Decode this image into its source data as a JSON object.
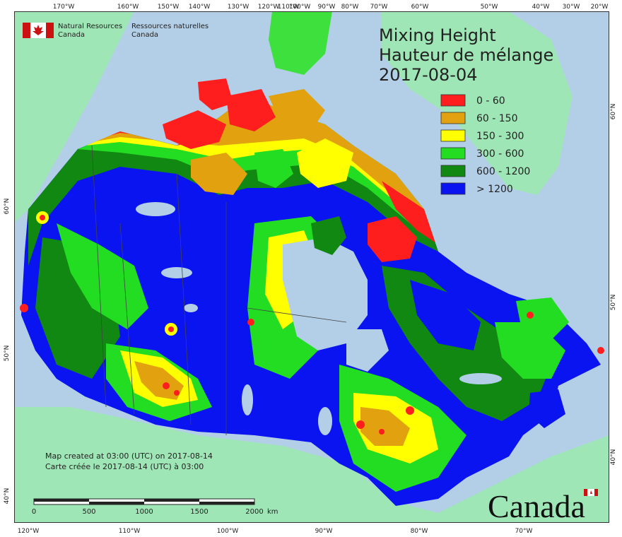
{
  "header": {
    "agency_en_line1": "Natural Resources",
    "agency_en_line2": "Canada",
    "agency_fr_line1": "Ressources naturelles",
    "agency_fr_line2": "Canada",
    "title_en": "Mixing Height",
    "title_fr": "Hauteur de mélange",
    "date": "2017-08-04"
  },
  "legend": [
    {
      "label": "0 - 60",
      "color": "#ff1e1e"
    },
    {
      "label": "60 - 150",
      "color": "#e2a10f"
    },
    {
      "label": "150 - 300",
      "color": "#ffff00"
    },
    {
      "label": "300 - 600",
      "color": "#22dd22"
    },
    {
      "label": "600 - 1200",
      "color": "#118811"
    },
    {
      "label": "> 1200",
      "color": "#0a14f0"
    }
  ],
  "credits": {
    "line_en": "Map created at 03:00 (UTC) on 2017-08-14",
    "line_fr": "Carte créée le 2017-08-14 (UTC) à 03:00"
  },
  "scale_bar": {
    "ticks": [
      "0",
      "500",
      "1000",
      "1500",
      "2000"
    ],
    "unit": "km"
  },
  "wordmark": "Canada",
  "top_longitudes": [
    "170°W",
    "160°W",
    "150°W",
    "140°W",
    "130°W",
    "120°W",
    "110°W",
    "100°W",
    "90°W",
    "80°W",
    "70°W",
    "60°W",
    "50°W",
    "40°W",
    "30°W",
    "20°W"
  ],
  "bottom_longitudes": [
    "120°W",
    "110°W",
    "100°W",
    "90°W",
    "80°W",
    "70°W"
  ],
  "left_latitudes": [
    "60°N",
    "50°N",
    "40°N"
  ],
  "right_latitudes": [
    "60°N",
    "50°N",
    "40°N"
  ],
  "colors": {
    "ocean": "#b3cfe8",
    "land_outside": "#9ee6b5",
    "frame": "#333333"
  }
}
